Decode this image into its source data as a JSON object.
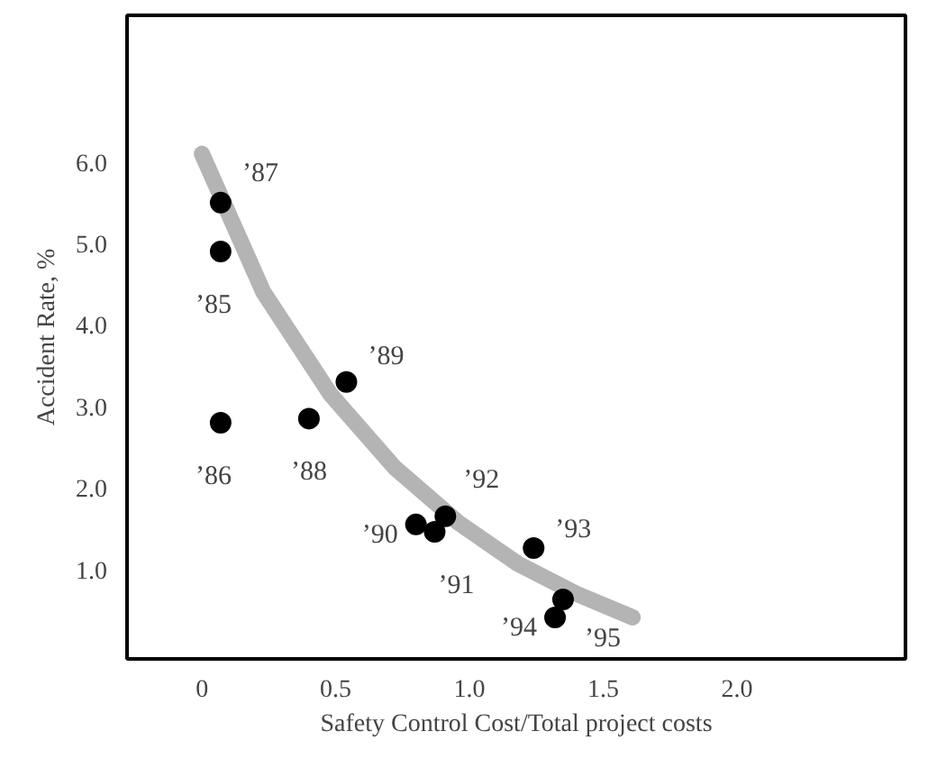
{
  "chart_data": {
    "type": "scatter",
    "xlabel": "Safety Control Cost/Total project costs",
    "ylabel": "Accident Rate, %",
    "xlim": [
      -0.28,
      2.63
    ],
    "ylim": [
      -0.1,
      7.8
    ],
    "xticks": [
      0,
      {
        "value": 0.5,
        "label": "0.5"
      },
      {
        "value": 1,
        "label": "1.0"
      },
      {
        "value": 1.5,
        "label": "1.5"
      },
      {
        "value": 2,
        "label": "2.0"
      }
    ],
    "yticks": [
      {
        "value": 1,
        "label": "1.0"
      },
      {
        "value": 2,
        "label": "2.0"
      },
      {
        "value": 3,
        "label": "3.0"
      },
      {
        "value": 4,
        "label": "4.0"
      },
      {
        "value": 5,
        "label": "5.0"
      },
      {
        "value": 6,
        "label": "6.0"
      }
    ],
    "grid": false,
    "series": [
      {
        "marker": "circle",
        "color": "#000000",
        "x": [
          0.07,
          0.07,
          0.07,
          0.4,
          0.54,
          0.8,
          0.87,
          0.91,
          1.24,
          1.32,
          1.35
        ],
        "values": [
          5.5,
          4.9,
          2.8,
          2.85,
          3.3,
          1.55,
          1.46,
          1.65,
          1.26,
          0.41,
          0.63
        ]
      },
      {
        "type": "line",
        "marker": "none",
        "color": "#b4b4b4",
        "x": [
          0,
          0.23,
          0.48,
          0.72,
          0.96,
          1.18,
          1.4,
          1.61
        ],
        "values": [
          6.1,
          4.4,
          3.15,
          2.25,
          1.57,
          1.07,
          0.7,
          0.41
        ]
      }
    ],
    "annotations": [
      {
        "text": "’87",
        "x": 0.07,
        "y": 5.5
      },
      {
        "text": "’85",
        "x": 0.07,
        "y": 4.9
      },
      {
        "text": "’86",
        "x": 0.07,
        "y": 2.8
      },
      {
        "text": "’88",
        "x": 0.4,
        "y": 2.85
      },
      {
        "text": "’89",
        "x": 0.54,
        "y": 3.3
      },
      {
        "text": "’90",
        "x": 0.8,
        "y": 1.55
      },
      {
        "text": "’91",
        "x": 0.87,
        "y": 1.46
      },
      {
        "text": "’92",
        "x": 0.91,
        "y": 1.65
      },
      {
        "text": "’93",
        "x": 1.24,
        "y": 1.26
      },
      {
        "text": "’94",
        "x": 1.32,
        "y": 0.41
      },
      {
        "text": "’95",
        "x": 1.35,
        "y": 0.63
      }
    ]
  }
}
